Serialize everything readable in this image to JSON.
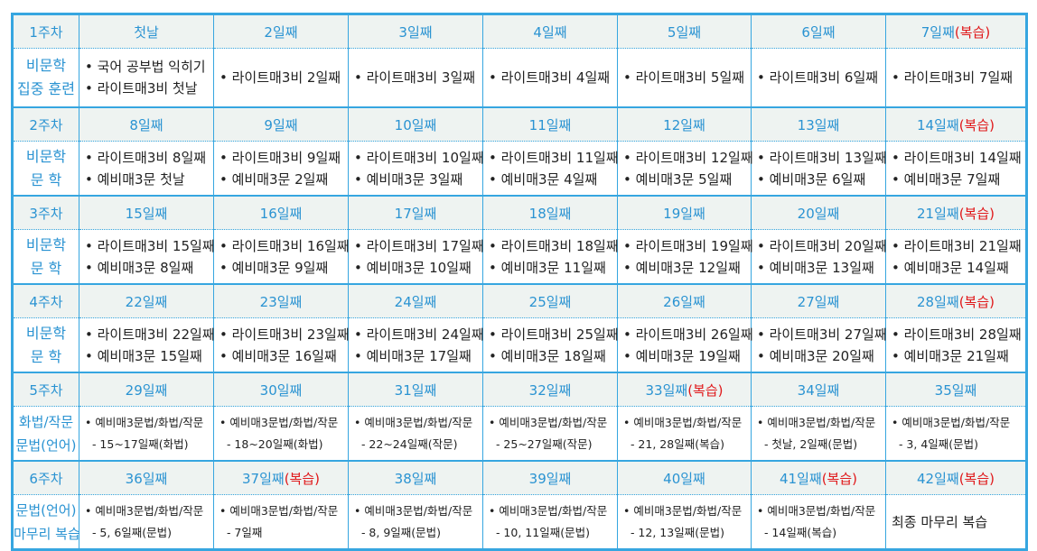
{
  "colors": {
    "border": "#36a6e0",
    "header_bg": "#eef3f1",
    "accent_blue": "#2a93d2",
    "review_red": "#e0191b"
  },
  "weeks": [
    {
      "label": "1주차",
      "subject": [
        "비문학",
        "집중 훈련"
      ],
      "days": [
        {
          "day": "첫날",
          "review": ""
        },
        {
          "day": "2일째",
          "review": ""
        },
        {
          "day": "3일째",
          "review": ""
        },
        {
          "day": "4일째",
          "review": ""
        },
        {
          "day": "5일째",
          "review": ""
        },
        {
          "day": "6일째",
          "review": ""
        },
        {
          "day": "7일째",
          "review": "(복습)"
        }
      ],
      "cells": [
        [
          "• 국어 공부법 익히기",
          "• 라이트매3비 첫날"
        ],
        [
          "• 라이트매3비 2일째"
        ],
        [
          "• 라이트매3비 3일째"
        ],
        [
          "• 라이트매3비 4일째"
        ],
        [
          "• 라이트매3비 5일째"
        ],
        [
          "• 라이트매3비 6일째"
        ],
        [
          "• 라이트매3비 7일째"
        ]
      ]
    },
    {
      "label": "2주차",
      "subject": [
        "비문학",
        "문  학"
      ],
      "days": [
        {
          "day": "8일째",
          "review": ""
        },
        {
          "day": "9일째",
          "review": ""
        },
        {
          "day": "10일째",
          "review": ""
        },
        {
          "day": "11일째",
          "review": ""
        },
        {
          "day": "12일째",
          "review": ""
        },
        {
          "day": "13일째",
          "review": ""
        },
        {
          "day": "14일째",
          "review": "(복습)"
        }
      ],
      "cells": [
        [
          "• 라이트매3비 8일째",
          "• 예비매3문 첫날"
        ],
        [
          "• 라이트매3비 9일째",
          "• 예비매3문 2일째"
        ],
        [
          "• 라이트매3비 10일째",
          "• 예비매3문 3일째"
        ],
        [
          "• 라이트매3비 11일째",
          "• 예비매3문 4일째"
        ],
        [
          "• 라이트매3비 12일째",
          "• 예비매3문 5일째"
        ],
        [
          "• 라이트매3비 13일째",
          "• 예비매3문 6일째"
        ],
        [
          "• 라이트매3비 14일째",
          "• 예비매3문 7일째"
        ]
      ]
    },
    {
      "label": "3주차",
      "subject": [
        "비문학",
        "문  학"
      ],
      "days": [
        {
          "day": "15일째",
          "review": ""
        },
        {
          "day": "16일째",
          "review": ""
        },
        {
          "day": "17일째",
          "review": ""
        },
        {
          "day": "18일째",
          "review": ""
        },
        {
          "day": "19일째",
          "review": ""
        },
        {
          "day": "20일째",
          "review": ""
        },
        {
          "day": "21일째",
          "review": "(복습)"
        }
      ],
      "cells": [
        [
          "• 라이트매3비 15일째",
          "• 예비매3문 8일째"
        ],
        [
          "• 라이트매3비 16일째",
          "• 예비매3문 9일째"
        ],
        [
          "• 라이트매3비 17일째",
          "• 예비매3문 10일째"
        ],
        [
          "• 라이트매3비 18일째",
          "• 예비매3문 11일째"
        ],
        [
          "• 라이트매3비 19일째",
          "• 예비매3문 12일째"
        ],
        [
          "• 라이트매3비 20일째",
          "• 예비매3문 13일째"
        ],
        [
          "• 라이트매3비 21일째",
          "• 예비매3문 14일째"
        ]
      ]
    },
    {
      "label": "4주차",
      "subject": [
        "비문학",
        "문  학"
      ],
      "days": [
        {
          "day": "22일째",
          "review": ""
        },
        {
          "day": "23일째",
          "review": ""
        },
        {
          "day": "24일째",
          "review": ""
        },
        {
          "day": "25일째",
          "review": ""
        },
        {
          "day": "26일째",
          "review": ""
        },
        {
          "day": "27일째",
          "review": ""
        },
        {
          "day": "28일째",
          "review": "(복습)"
        }
      ],
      "cells": [
        [
          "• 라이트매3비 22일째",
          "• 예비매3문 15일째"
        ],
        [
          "• 라이트매3비 23일째",
          "• 예비매3문 16일째"
        ],
        [
          "• 라이트매3비 24일째",
          "• 예비매3문 17일째"
        ],
        [
          "• 라이트매3비 25일째",
          "• 예비매3문 18일째"
        ],
        [
          "• 라이트매3비 26일째",
          "• 예비매3문 19일째"
        ],
        [
          "• 라이트매3비 27일째",
          "• 예비매3문 20일째"
        ],
        [
          "• 라이트매3비 28일째",
          "• 예비매3문 21일째"
        ]
      ]
    },
    {
      "label": "5주차",
      "subject": [
        "화법/작문",
        "문법(언어)"
      ],
      "days": [
        {
          "day": "29일째",
          "review": ""
        },
        {
          "day": "30일째",
          "review": ""
        },
        {
          "day": "31일째",
          "review": ""
        },
        {
          "day": "32일째",
          "review": ""
        },
        {
          "day": "33일째",
          "review": "(복습)"
        },
        {
          "day": "34일째",
          "review": ""
        },
        {
          "day": "35일째",
          "review": ""
        }
      ],
      "cells": [
        [
          "• 예비매3문법/화법/작문",
          "  - 15~17일째(화법)"
        ],
        [
          "• 예비매3문법/화법/작문",
          "  - 18~20일째(화법)"
        ],
        [
          "• 예비매3문법/화법/작문",
          "  - 22~24일째(작문)"
        ],
        [
          "• 예비매3문법/화법/작문",
          "  - 25~27일째(작문)"
        ],
        [
          "• 예비매3문법/화법/작문",
          "  - 21, 28일째(복습)"
        ],
        [
          "• 예비매3문법/화법/작문",
          "  - 첫날, 2일째(문법)"
        ],
        [
          "• 예비매3문법/화법/작문",
          "  - 3, 4일째(문법)"
        ]
      ]
    },
    {
      "label": "6주차",
      "subject": [
        "문법(언어)",
        "마무리 복습"
      ],
      "days": [
        {
          "day": "36일째",
          "review": ""
        },
        {
          "day": "37일째",
          "review": "(복습)"
        },
        {
          "day": "38일째",
          "review": ""
        },
        {
          "day": "39일째",
          "review": ""
        },
        {
          "day": "40일째",
          "review": ""
        },
        {
          "day": "41일째",
          "review": "(복습)"
        },
        {
          "day": "42일째",
          "review": "(복습)"
        }
      ],
      "cells": [
        [
          "• 예비매3문법/화법/작문",
          "  - 5, 6일째(문법)"
        ],
        [
          "• 예비매3문법/화법/작문",
          "  - 7일째"
        ],
        [
          "• 예비매3문법/화법/작문",
          "  - 8, 9일째(문법)"
        ],
        [
          "• 예비매3문법/화법/작문",
          "  - 10, 11일째(문법)"
        ],
        [
          "• 예비매3문법/화법/작문",
          "  - 12, 13일째(문법)"
        ],
        [
          "• 예비매3문법/화법/작문",
          "  - 14일째(복습)"
        ],
        [
          "최종 마무리 복습"
        ]
      ]
    }
  ]
}
